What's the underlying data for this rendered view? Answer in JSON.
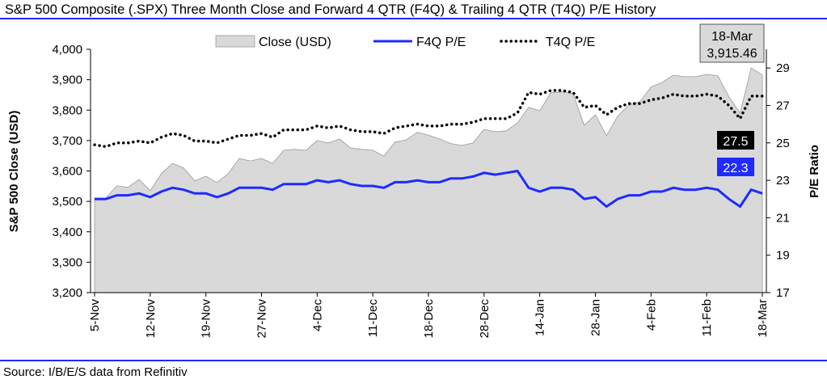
{
  "chart_data": {
    "type": "area-line",
    "title": "S&P 500 Composite (.SPX) Three Month Close and Forward 4 QTR (F4Q) & Trailing 4 QTR (T4Q) P/E History",
    "source": "Source: I/B/E/S data from Refinitiv",
    "ylabel": "S&P 500 Close (USD)",
    "y2label": "P/E Ratio",
    "categories": [
      "5-Nov",
      null,
      null,
      null,
      null,
      "12-Nov",
      null,
      null,
      null,
      null,
      "19-Nov",
      null,
      null,
      null,
      null,
      "27-Nov",
      null,
      null,
      null,
      null,
      "4-Dec",
      null,
      null,
      null,
      null,
      "11-Dec",
      null,
      null,
      null,
      null,
      "18-Dec",
      null,
      null,
      null,
      null,
      "28-Dec",
      null,
      null,
      null,
      null,
      "14-Jan",
      null,
      null,
      null,
      null,
      "28-Jan",
      null,
      null,
      null,
      null,
      "4-Feb",
      null,
      null,
      null,
      null,
      "11-Feb",
      null,
      null,
      null,
      null,
      "18-Mar"
    ],
    "ylim": [
      3200,
      4000
    ],
    "yticks": [
      {
        "value": 3200,
        "label": "3,200"
      },
      {
        "value": 3300,
        "label": "3,300"
      },
      {
        "value": 3400,
        "label": "3,400"
      },
      {
        "value": 3500,
        "label": "3,500"
      },
      {
        "value": 3600,
        "label": "3,600"
      },
      {
        "value": 3700,
        "label": "3,700"
      },
      {
        "value": 3800,
        "label": "3,800"
      },
      {
        "value": 3900,
        "label": "3,900"
      },
      {
        "value": 4000,
        "label": "4,000"
      }
    ],
    "y2lim": [
      17,
      30
    ],
    "y2ticks": [
      17,
      19,
      21,
      23,
      25,
      27,
      29
    ],
    "grid": false,
    "series": [
      {
        "name": "Close (USD)",
        "style": "area",
        "color": "#d9d9d9",
        "values": [
          3511,
          3511,
          3551,
          3546,
          3572,
          3535,
          3591,
          3625,
          3610,
          3567,
          3583,
          3562,
          3591,
          3641,
          3633,
          3641,
          3625,
          3668,
          3671,
          3668,
          3700,
          3692,
          3705,
          3676,
          3671,
          3668,
          3649,
          3695,
          3702,
          3727,
          3718,
          3705,
          3690,
          3684,
          3692,
          3737,
          3729,
          3732,
          3758,
          3809,
          3798,
          3857,
          3860,
          3854,
          3750,
          3785,
          3716,
          3780,
          3817,
          3828,
          3876,
          3891,
          3915,
          3910,
          3910,
          3918,
          3913,
          3844,
          3790,
          3939,
          3915.46
        ]
      },
      {
        "name": "F4Q P/E",
        "style": "solid",
        "color": "#1f2bff",
        "axis": "y2",
        "values": [
          22.0,
          22.0,
          22.2,
          22.2,
          22.3,
          22.1,
          22.4,
          22.6,
          22.5,
          22.3,
          22.3,
          22.1,
          22.3,
          22.6,
          22.6,
          22.6,
          22.5,
          22.8,
          22.8,
          22.8,
          23.0,
          22.9,
          23.0,
          22.8,
          22.7,
          22.7,
          22.6,
          22.9,
          22.9,
          23.0,
          22.9,
          22.9,
          23.1,
          23.1,
          23.2,
          23.4,
          23.3,
          23.4,
          23.5,
          22.6,
          22.4,
          22.6,
          22.6,
          22.5,
          22.0,
          22.1,
          21.6,
          22.0,
          22.2,
          22.2,
          22.4,
          22.4,
          22.6,
          22.5,
          22.5,
          22.6,
          22.5,
          22.0,
          21.6,
          22.5,
          22.3
        ]
      },
      {
        "name": "T4Q P/E",
        "style": "dotted",
        "color": "#000000",
        "axis": "y2",
        "values": [
          24.9,
          24.8,
          25.0,
          25.0,
          25.1,
          25.0,
          25.3,
          25.5,
          25.4,
          25.1,
          25.1,
          25.0,
          25.2,
          25.4,
          25.4,
          25.5,
          25.3,
          25.7,
          25.7,
          25.7,
          25.9,
          25.8,
          25.9,
          25.7,
          25.6,
          25.6,
          25.5,
          25.8,
          25.9,
          26.0,
          25.9,
          25.9,
          26.0,
          26.0,
          26.1,
          26.3,
          26.3,
          26.3,
          26.6,
          27.7,
          27.6,
          27.8,
          27.8,
          27.7,
          26.9,
          27.0,
          26.5,
          26.9,
          27.1,
          27.1,
          27.3,
          27.4,
          27.6,
          27.5,
          27.5,
          27.6,
          27.5,
          27.0,
          26.3,
          27.5,
          27.5
        ]
      }
    ],
    "annotation": {
      "date": "18-Mar",
      "label": "3,915.46"
    }
  }
}
